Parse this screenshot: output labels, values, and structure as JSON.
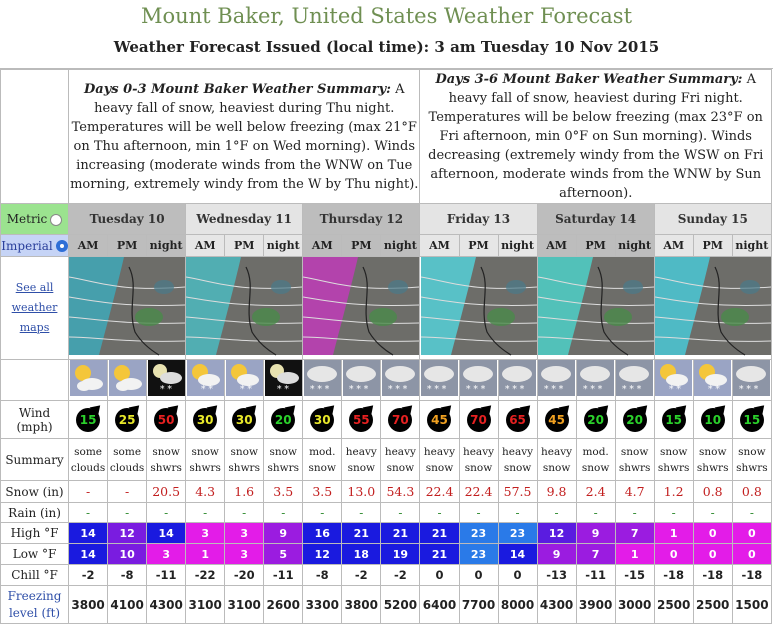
{
  "header": {
    "title": "Mount Baker, United States Weather Forecast",
    "issued": "Weather Forecast Issued (local time): 3 am Tuesday 10 Nov 2015"
  },
  "summaries": [
    {
      "heading": "Days 0-3 Mount Baker Weather Summary:",
      "text": " A heavy fall of snow, heaviest during Thu night. Temperatures will be well below freezing (max 21°F on Thu afternoon, min 1°F on Wed morning). Winds increasing (moderate winds from the WNW on Tue morning, extremely windy from the W by Thu night)."
    },
    {
      "heading": "Days 3-6 Mount Baker Weather Summary:",
      "text": " A heavy fall of snow, heaviest during Fri night. Temperatures will be below freezing (max 23°F on Fri afternoon, min 0°F on Sun morning). Winds decreasing (extremely windy from the WSW on Fri afternoon, moderate winds from the WNW by Sun afternoon)."
    }
  ],
  "units": {
    "metric": "Metric",
    "imperial": "Imperial",
    "selected": "imperial"
  },
  "days": [
    "Tuesday 10",
    "Wednesday 11",
    "Thursday 12",
    "Friday 13",
    "Saturday 14",
    "Sunday 15"
  ],
  "periods": [
    "AM",
    "PM",
    "night"
  ],
  "labels": {
    "see_all": "See all weather maps",
    "wind": "Wind (mph)",
    "summary": "Summary",
    "snow": "Snow (in)",
    "rain": "Rain (in)",
    "high": "High °F",
    "low": "Low °F",
    "chill": "Chill °F",
    "freezing": "Freezing level (ft)"
  },
  "icons": [
    "sun-cloud-icon",
    "sun-cloud-icon",
    "night-snow-icon",
    "sun-snow-icon",
    "sun-snow-icon",
    "night-snow-icon",
    "cloud-snow-icon",
    "cloud-snow-icon",
    "cloud-snow-icon",
    "cloud-snow-icon",
    "cloud-snow-icon",
    "cloud-snow-icon",
    "cloud-snow-icon",
    "cloud-snow-icon",
    "cloud-snow-icon",
    "sun-snow-icon",
    "sun-snow-icon",
    "cloud-snow-icon"
  ],
  "wind": [
    {
      "v": "15",
      "c": "#2bd12b"
    },
    {
      "v": "25",
      "c": "#e8e82a"
    },
    {
      "v": "50",
      "c": "#e62020"
    },
    {
      "v": "30",
      "c": "#e8e82a"
    },
    {
      "v": "30",
      "c": "#e8e82a"
    },
    {
      "v": "20",
      "c": "#2bd12b"
    },
    {
      "v": "30",
      "c": "#e8e82a"
    },
    {
      "v": "55",
      "c": "#e62020"
    },
    {
      "v": "70",
      "c": "#e62020"
    },
    {
      "v": "45",
      "c": "#f0a020"
    },
    {
      "v": "70",
      "c": "#e62020"
    },
    {
      "v": "65",
      "c": "#e62020"
    },
    {
      "v": "45",
      "c": "#f0a020"
    },
    {
      "v": "20",
      "c": "#2bd12b"
    },
    {
      "v": "20",
      "c": "#2bd12b"
    },
    {
      "v": "15",
      "c": "#2bd12b"
    },
    {
      "v": "10",
      "c": "#2bd12b"
    },
    {
      "v": "15",
      "c": "#2bd12b"
    }
  ],
  "summary": [
    "some clouds",
    "some clouds",
    "snow shwrs",
    "snow shwrs",
    "snow shwrs",
    "snow shwrs",
    "mod. snow",
    "heavy snow",
    "heavy snow",
    "heavy snow",
    "heavy snow",
    "heavy snow",
    "heavy snow",
    "mod. snow",
    "snow shwrs",
    "snow shwrs",
    "snow shwrs",
    "snow shwrs"
  ],
  "snow": [
    "-",
    "-",
    "20.5",
    "4.3",
    "1.6",
    "3.5",
    "3.5",
    "13.0",
    "54.3",
    "22.4",
    "22.4",
    "57.5",
    "9.8",
    "2.4",
    "4.7",
    "1.2",
    "0.8",
    "0.8"
  ],
  "rain": [
    "-",
    "-",
    "-",
    "-",
    "-",
    "-",
    "-",
    "-",
    "-",
    "-",
    "-",
    "-",
    "-",
    "-",
    "-",
    "-",
    "-",
    "-"
  ],
  "high": [
    {
      "v": "14",
      "c": "#1a1adf"
    },
    {
      "v": "12",
      "c": "#7a1ce0"
    },
    {
      "v": "14",
      "c": "#1a1adf"
    },
    {
      "v": "3",
      "c": "#e31ce8"
    },
    {
      "v": "3",
      "c": "#e31ce8"
    },
    {
      "v": "9",
      "c": "#9b1ce0"
    },
    {
      "v": "16",
      "c": "#1a1adf"
    },
    {
      "v": "21",
      "c": "#1a1adf"
    },
    {
      "v": "21",
      "c": "#1a1adf"
    },
    {
      "v": "21",
      "c": "#1a1adf"
    },
    {
      "v": "23",
      "c": "#2a7ae8"
    },
    {
      "v": "23",
      "c": "#2a7ae8"
    },
    {
      "v": "12",
      "c": "#5a1ce0"
    },
    {
      "v": "9",
      "c": "#9b1ce0"
    },
    {
      "v": "7",
      "c": "#9b1ce0"
    },
    {
      "v": "1",
      "c": "#e31ce8"
    },
    {
      "v": "0",
      "c": "#e31ce8"
    },
    {
      "v": "0",
      "c": "#e31ce8"
    }
  ],
  "low": [
    {
      "v": "14",
      "c": "#1a1adf"
    },
    {
      "v": "10",
      "c": "#7a1ce0"
    },
    {
      "v": "3",
      "c": "#e31ce8"
    },
    {
      "v": "1",
      "c": "#e31ce8"
    },
    {
      "v": "3",
      "c": "#e31ce8"
    },
    {
      "v": "5",
      "c": "#9b1ce0"
    },
    {
      "v": "12",
      "c": "#1a1adf"
    },
    {
      "v": "18",
      "c": "#1a1adf"
    },
    {
      "v": "19",
      "c": "#1a1adf"
    },
    {
      "v": "21",
      "c": "#1a1adf"
    },
    {
      "v": "23",
      "c": "#2a7ae8"
    },
    {
      "v": "14",
      "c": "#1a1adf"
    },
    {
      "v": "9",
      "c": "#9b1ce0"
    },
    {
      "v": "7",
      "c": "#9b1ce0"
    },
    {
      "v": "1",
      "c": "#e31ce8"
    },
    {
      "v": "0",
      "c": "#e31ce8"
    },
    {
      "v": "0",
      "c": "#e31ce8"
    },
    {
      "v": "0",
      "c": "#e31ce8"
    }
  ],
  "chill": [
    "-2",
    "-8",
    "-11",
    "-22",
    "-20",
    "-11",
    "-8",
    "-2",
    "-2",
    "0",
    "0",
    "0",
    "-13",
    "-11",
    "-15",
    "-18",
    "-18",
    "-18"
  ],
  "freezing": [
    "3800",
    "4100",
    "4300",
    "3100",
    "3100",
    "2600",
    "3300",
    "3800",
    "5200",
    "6400",
    "7700",
    "8000",
    "4300",
    "3900",
    "3000",
    "2500",
    "2500",
    "1500"
  ],
  "colors": {
    "title": "#6f8f52",
    "link": "#2f4fa8",
    "metric_bg": "#9be38f",
    "imperial_bg": "#c6d4f6"
  }
}
